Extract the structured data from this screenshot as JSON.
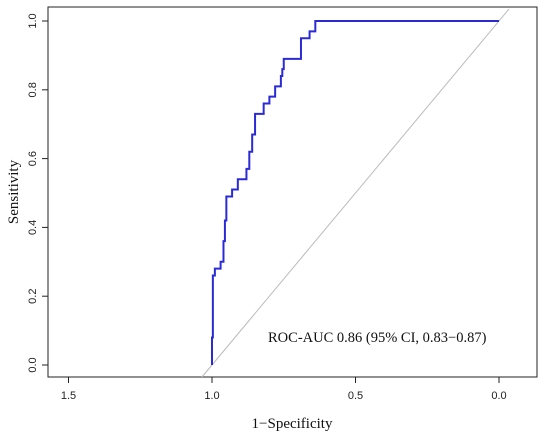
{
  "chart_data": {
    "type": "line",
    "title": "",
    "xlabel": "1−Specificity",
    "ylabel": "Sensitivity",
    "xlim": [
      1.5,
      -0.05
    ],
    "ylim": [
      0.0,
      1.0
    ],
    "x_reversed": true,
    "x_ticks": [
      1.5,
      1.0,
      0.5,
      0.0
    ],
    "x_tick_labels": [
      "1.5",
      "1.0",
      "0.5",
      "0.0"
    ],
    "y_ticks": [
      0.0,
      0.2,
      0.4,
      0.6,
      0.8,
      1.0
    ],
    "y_tick_labels": [
      "0.0",
      "0.2",
      "0.4",
      "0.6",
      "0.8",
      "1.0"
    ],
    "grid": false,
    "annotation": "ROC-AUC 0.86 (95% CI, 0.83−0.87)",
    "series": [
      {
        "color": "#2b2bd6",
        "x": [
          1.0,
          1.0,
          0.997,
          0.997,
          0.99,
          0.99,
          0.97,
          0.97,
          0.96,
          0.96,
          0.955,
          0.955,
          0.95,
          0.95,
          0.93,
          0.93,
          0.91,
          0.91,
          0.88,
          0.88,
          0.87,
          0.87,
          0.86,
          0.86,
          0.85,
          0.85,
          0.82,
          0.82,
          0.8,
          0.8,
          0.78,
          0.78,
          0.76,
          0.76,
          0.755,
          0.755,
          0.75,
          0.75,
          0.69,
          0.69,
          0.66,
          0.66,
          0.64,
          0.64,
          0.0
        ],
        "y": [
          0.0,
          0.08,
          0.08,
          0.26,
          0.26,
          0.28,
          0.28,
          0.3,
          0.3,
          0.36,
          0.36,
          0.42,
          0.42,
          0.49,
          0.49,
          0.51,
          0.51,
          0.54,
          0.54,
          0.57,
          0.57,
          0.62,
          0.62,
          0.67,
          0.67,
          0.73,
          0.73,
          0.76,
          0.76,
          0.78,
          0.78,
          0.81,
          0.81,
          0.84,
          0.84,
          0.86,
          0.86,
          0.89,
          0.89,
          0.95,
          0.95,
          0.97,
          0.97,
          1.0,
          1.0
        ]
      }
    ],
    "reference_line": {
      "x": [
        1.0,
        0.0
      ],
      "y": [
        0.0,
        1.0
      ],
      "color": "#bbbbbb"
    }
  }
}
